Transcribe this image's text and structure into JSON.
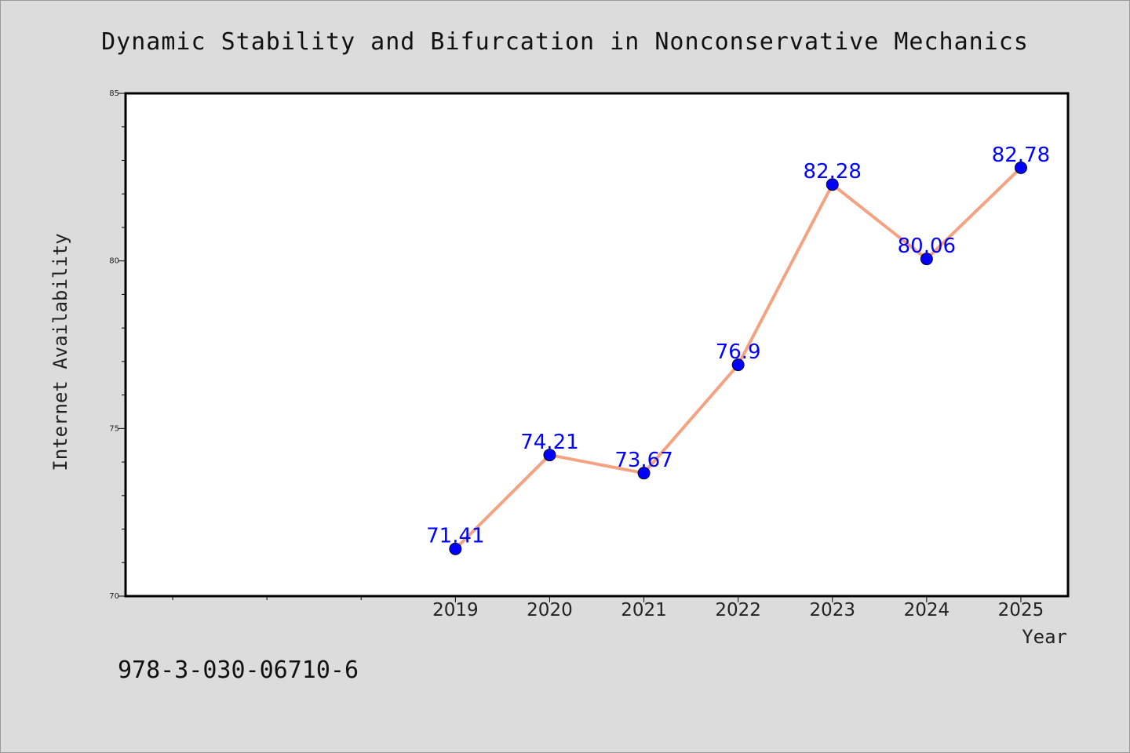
{
  "footer_text": "978-3-030-06710-6",
  "colors": {
    "background": "#dcdcdc",
    "plot_background": "#ffffff",
    "line": "#f4a382",
    "marker": "#0000ff",
    "data_label": "#0000ff"
  },
  "chart_data": {
    "type": "line",
    "title": "Dynamic Stability and Bifurcation in Nonconservative Mechanics",
    "xlabel": "Year",
    "ylabel": "Internet Availability",
    "x": [
      "2019",
      "2020",
      "2021",
      "2022",
      "2023",
      "2024",
      "2025"
    ],
    "x_position": [
      3,
      4,
      5,
      6,
      7,
      8,
      9
    ],
    "xlim": [
      -0.5,
      9.5
    ],
    "x_minor_ticks": [
      0,
      1,
      2
    ],
    "values": [
      71.41,
      74.21,
      73.67,
      76.9,
      82.28,
      80.06,
      82.78
    ],
    "data_labels": [
      "71.41",
      "74.21",
      "73.67",
      "76.9",
      "82.28",
      "80.06",
      "82.78"
    ],
    "ylim": [
      70,
      85
    ],
    "yticks": [
      70,
      75,
      80,
      85
    ],
    "y_minor_step": 1,
    "grid": false,
    "legend": false
  }
}
